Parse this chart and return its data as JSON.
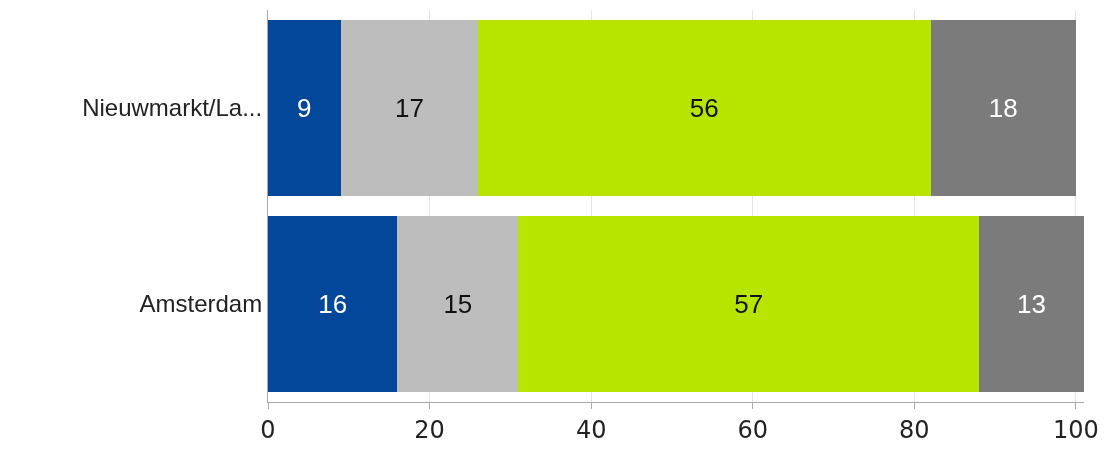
{
  "chart_data": {
    "type": "bar",
    "orientation": "horizontal",
    "stacked": true,
    "data_labels": true,
    "grid": "x",
    "categories": [
      "Nieuwmarkt/La...",
      "Amsterdam"
    ],
    "series": [
      {
        "color": "#03479b",
        "values": [
          9,
          16
        ]
      },
      {
        "color": "#bdbdbd",
        "values": [
          17,
          15
        ]
      },
      {
        "color": "#b7e500",
        "values": [
          56,
          57
        ]
      },
      {
        "color": "#7b7b7b",
        "values": [
          18,
          13
        ]
      }
    ],
    "xlim": [
      0,
      101
    ],
    "xticks": [
      0,
      20,
      40,
      60,
      80,
      100
    ]
  }
}
